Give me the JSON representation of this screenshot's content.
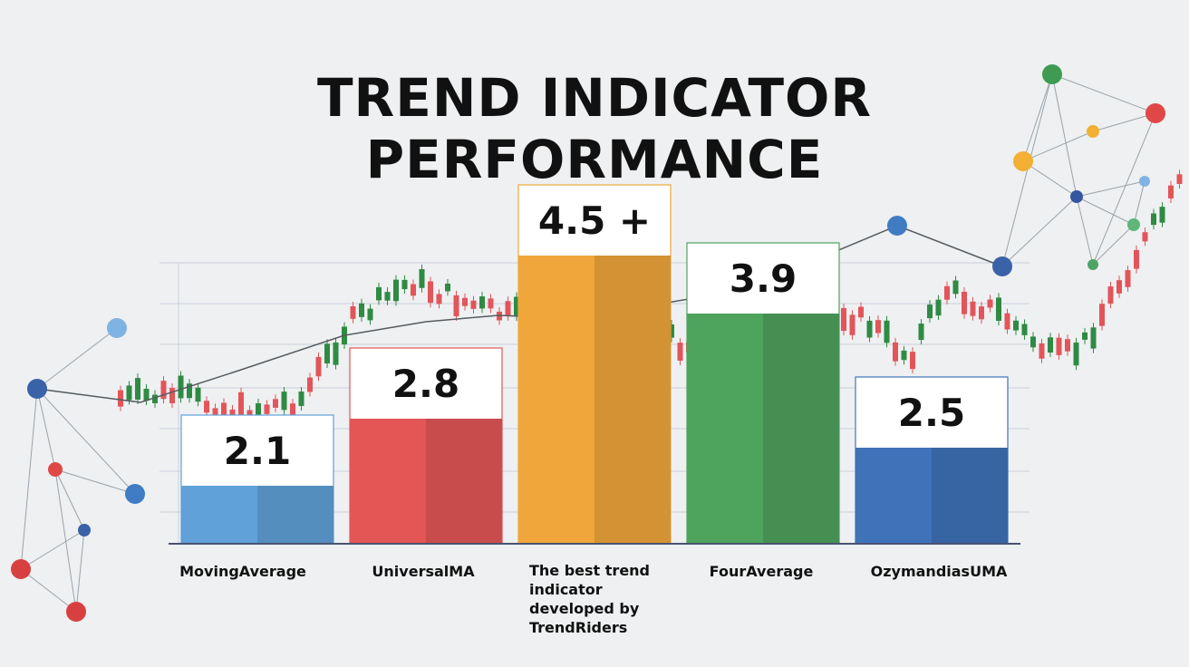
{
  "chart_data": {
    "type": "bar",
    "title": "TREND INDICATOR PERFORMANCE",
    "title_lines": [
      "TREND INDICATOR",
      "PERFORMANCE"
    ],
    "categories": [
      "MovingAverage",
      "UniversalMA",
      "The best trend indicator developed by TrendRiders",
      "FourAverage",
      "OzymandiasUMA"
    ],
    "values": [
      2.1,
      2.8,
      4.5,
      3.9,
      2.5
    ],
    "value_labels": [
      "2.1",
      "2.8",
      "4.5 +",
      "3.9",
      "2.5"
    ],
    "colors": [
      "#5fa1d8",
      "#e45656",
      "#f0a63a",
      "#4ea35d",
      "#3f73b9"
    ],
    "grid": true,
    "legend": "none"
  },
  "colors": {
    "background": "#eef0f1",
    "grid": "#c9d0dc",
    "axis": "#4a5270",
    "text": "#111111",
    "decor_line": "#555b60"
  }
}
